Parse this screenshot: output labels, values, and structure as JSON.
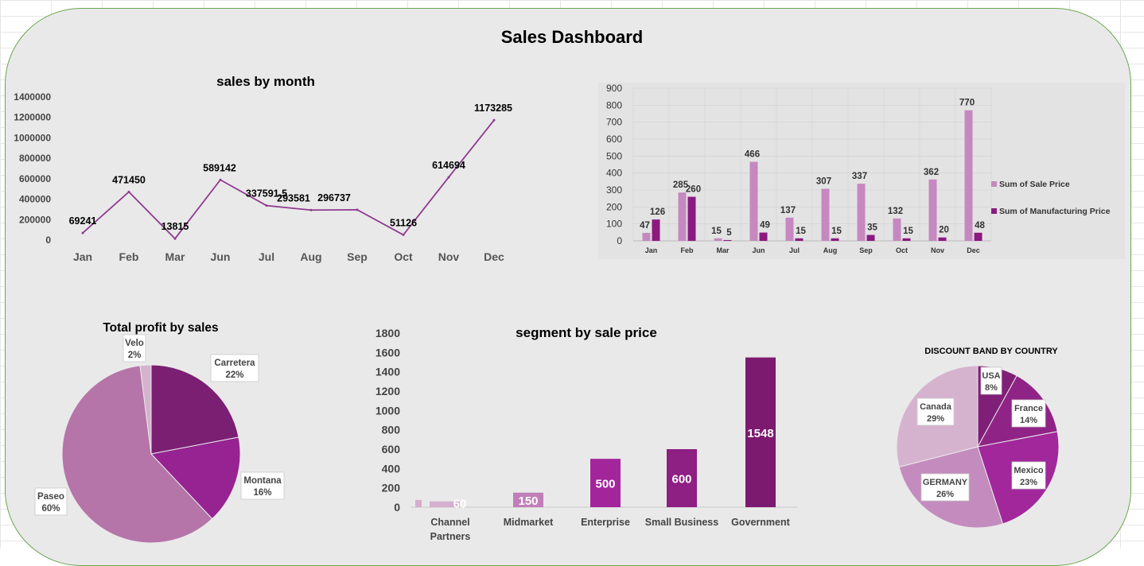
{
  "dashboard": {
    "title": "Sales Dashboard"
  },
  "chart_data": [
    {
      "type": "line",
      "title": "sales by month",
      "categories": [
        "Jan",
        "Feb",
        "Mar",
        "Jun",
        "Jul",
        "Aug",
        "Sep",
        "Oct",
        "Nov",
        "Dec"
      ],
      "values": [
        69241,
        471450,
        13815,
        589142,
        337591.5,
        293581,
        296737,
        51126,
        614694,
        1173285
      ],
      "data_labels": [
        "69241",
        "471450",
        "13815",
        "589142",
        "337591.5",
        "293581",
        "296737",
        "51126",
        "614694",
        "1173285"
      ],
      "yticks": [
        "0",
        "200000",
        "400000",
        "600000",
        "800000",
        "1000000",
        "1200000",
        "1400000"
      ],
      "ylim": [
        0,
        1400000
      ],
      "color": "#8e3a8e"
    },
    {
      "type": "bar",
      "title": "",
      "categories": [
        "Jan",
        "Feb",
        "Mar",
        "Jun",
        "Jul",
        "Aug",
        "Sep",
        "Oct",
        "Nov",
        "Dec"
      ],
      "series": [
        {
          "name": "Sum of Sale Price",
          "values": [
            47,
            285,
            15,
            466,
            137,
            307,
            337,
            132,
            362,
            770
          ],
          "color": "#c688c0"
        },
        {
          "name": "Sum of Manufacturing Price",
          "values": [
            126,
            260,
            5,
            49,
            15,
            15,
            35,
            15,
            20,
            48
          ],
          "color": "#8b1a7f"
        }
      ],
      "yticks": [
        "0",
        "100",
        "200",
        "300",
        "400",
        "500",
        "600",
        "700",
        "800",
        "900"
      ],
      "ylim": [
        0,
        900
      ],
      "legend": "right"
    },
    {
      "type": "pie",
      "title": "Total profit by sales",
      "slices": [
        {
          "label": "Carretera",
          "pct": "22%",
          "value": 22,
          "color": "#7b1f73"
        },
        {
          "label": "Montana",
          "pct": "16%",
          "value": 16,
          "color": "#962391"
        },
        {
          "label": "Paseo",
          "pct": "60%",
          "value": 60,
          "color": "#b575a9"
        },
        {
          "label": "Velo",
          "pct": "2%",
          "value": 2,
          "color": "#d5b3cf"
        }
      ]
    },
    {
      "type": "bar",
      "title": "segment by sale price",
      "categories": [
        "Channel Partners",
        "Midmarket",
        "Enterprise",
        "Small Business",
        "Government"
      ],
      "values": [
        60,
        150,
        500,
        600,
        1548
      ],
      "data_labels": [
        "60",
        "150",
        "500",
        "600",
        "1548"
      ],
      "colors": [
        "#d5aed0",
        "#c07fb8",
        "#a2259b",
        "#8e1f83",
        "#7b1a6e"
      ],
      "yticks": [
        "0",
        "200",
        "400",
        "600",
        "800",
        "1000",
        "1200",
        "1400",
        "1600",
        "1800"
      ],
      "ylim": [
        0,
        1800
      ]
    },
    {
      "type": "pie",
      "title": "DISCOUNT BAND BY COUNTRY",
      "slices": [
        {
          "label": "USA",
          "pct": "8%",
          "value": 8,
          "color": "#801f77"
        },
        {
          "label": "France",
          "pct": "14%",
          "value": 14,
          "color": "#8f2486"
        },
        {
          "label": "Mexico",
          "pct": "23%",
          "value": 23,
          "color": "#a1279b"
        },
        {
          "label": "GERMANY",
          "pct": "26%",
          "value": 26,
          "color": "#c48cbe"
        },
        {
          "label": "Canada",
          "pct": "29%",
          "value": 29,
          "color": "#d5b3cf"
        }
      ]
    }
  ]
}
